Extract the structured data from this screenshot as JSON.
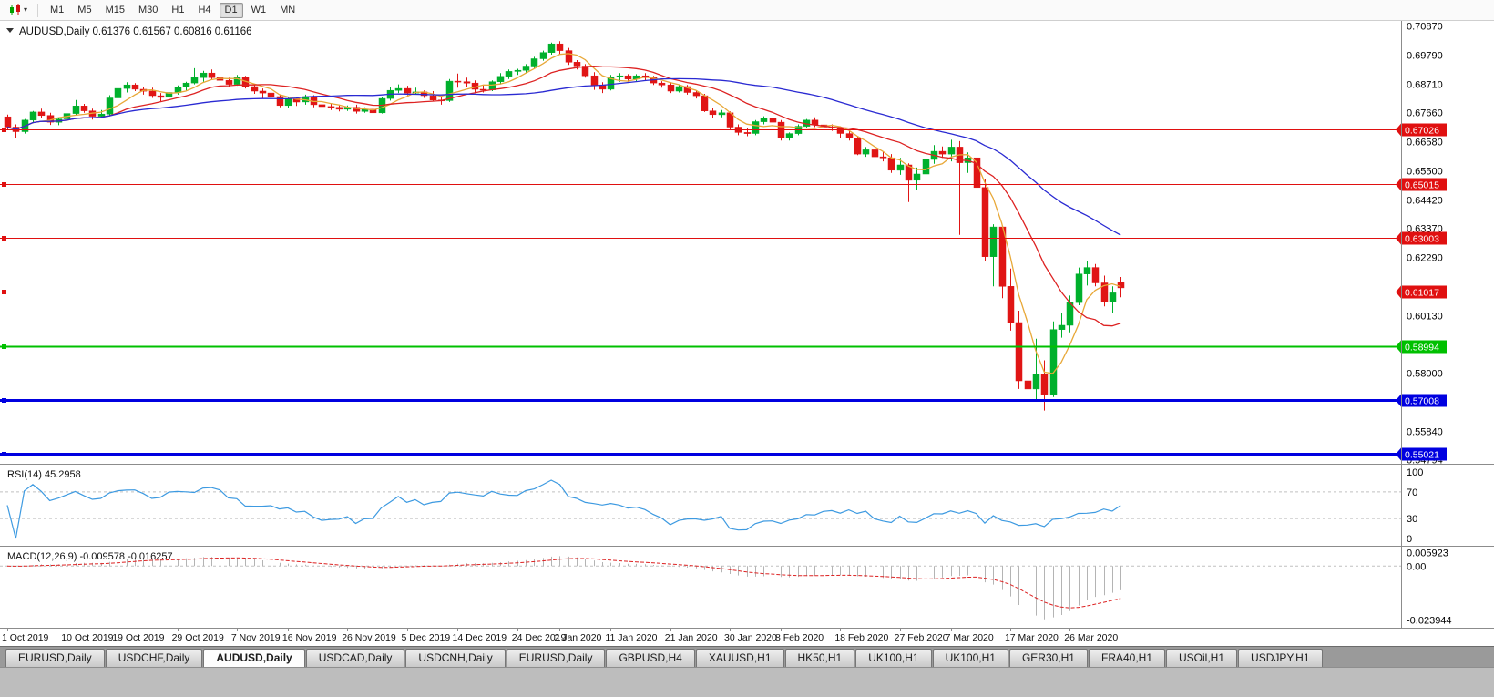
{
  "toolbar": {
    "chart_type_label": "Charts",
    "timeframes": [
      "M1",
      "M5",
      "M15",
      "M30",
      "H1",
      "H4",
      "D1",
      "W1",
      "MN"
    ],
    "active_timeframe": "D1"
  },
  "chart": {
    "symbol_label": "AUDUSD,Daily",
    "ohlc_text": "0.61376 0.61567 0.60816 0.61166"
  },
  "chart_data": {
    "type": "candlestick",
    "title": "AUDUSD,Daily",
    "quote": {
      "open": "0.61376",
      "high": "0.61567",
      "low": "0.60816",
      "close": "0.61166"
    },
    "price_axis": {
      "min": 0.5465,
      "max": 0.7105,
      "ticks": [
        "0.70870",
        "0.69790",
        "0.68710",
        "0.67660",
        "0.66580",
        "0.65500",
        "0.64420",
        "0.63370",
        "0.62290",
        "0.60130",
        "0.58000",
        "0.55840",
        "0.54794"
      ]
    },
    "x_labels": [
      {
        "label": "1 Oct 2019",
        "i": 0
      },
      {
        "label": "10 Oct 2019",
        "i": 7
      },
      {
        "label": "19 Oct 2019",
        "i": 13
      },
      {
        "label": "29 Oct 2019",
        "i": 20
      },
      {
        "label": "7 Nov 2019",
        "i": 27
      },
      {
        "label": "16 Nov 2019",
        "i": 33
      },
      {
        "label": "26 Nov 2019",
        "i": 40
      },
      {
        "label": "5 Dec 2019",
        "i": 47
      },
      {
        "label": "14 Dec 2019",
        "i": 53
      },
      {
        "label": "24 Dec 2019",
        "i": 60
      },
      {
        "label": "2 Jan 2020",
        "i": 65
      },
      {
        "label": "11 Jan 2020",
        "i": 71
      },
      {
        "label": "21 Jan 2020",
        "i": 78
      },
      {
        "label": "30 Jan 2020",
        "i": 85
      },
      {
        "label": "8 Feb 2020",
        "i": 91
      },
      {
        "label": "18 Feb 2020",
        "i": 98
      },
      {
        "label": "27 Feb 2020",
        "i": 105
      },
      {
        "label": "7 Mar 2020",
        "i": 111
      },
      {
        "label": "17 Mar 2020",
        "i": 118
      },
      {
        "label": "26 Mar 2020",
        "i": 125
      }
    ],
    "candles": [
      [
        0.675,
        0.6758,
        0.6702,
        0.6712
      ],
      [
        0.6712,
        0.6722,
        0.667,
        0.6695
      ],
      [
        0.6695,
        0.6742,
        0.6688,
        0.6738
      ],
      [
        0.6738,
        0.6772,
        0.673,
        0.6768
      ],
      [
        0.6768,
        0.678,
        0.6745,
        0.6755
      ],
      [
        0.6755,
        0.6765,
        0.672,
        0.673
      ],
      [
        0.673,
        0.6748,
        0.6719,
        0.6742
      ],
      [
        0.6742,
        0.677,
        0.6738,
        0.6762
      ],
      [
        0.6762,
        0.6812,
        0.6755,
        0.679
      ],
      [
        0.679,
        0.6798,
        0.6765,
        0.6772
      ],
      [
        0.6772,
        0.678,
        0.674,
        0.6752
      ],
      [
        0.6752,
        0.6775,
        0.6745,
        0.676
      ],
      [
        0.676,
        0.683,
        0.6755,
        0.682
      ],
      [
        0.682,
        0.686,
        0.681,
        0.6855
      ],
      [
        0.6855,
        0.6878,
        0.684,
        0.6868
      ],
      [
        0.6868,
        0.6875,
        0.6845,
        0.6852
      ],
      [
        0.6852,
        0.6862,
        0.6832,
        0.6845
      ],
      [
        0.6845,
        0.6858,
        0.682,
        0.6828
      ],
      [
        0.6828,
        0.6838,
        0.6808,
        0.6822
      ],
      [
        0.6822,
        0.6848,
        0.6815,
        0.684
      ],
      [
        0.684,
        0.6866,
        0.6832,
        0.686
      ],
      [
        0.686,
        0.688,
        0.6845,
        0.6875
      ],
      [
        0.6875,
        0.693,
        0.687,
        0.6895
      ],
      [
        0.6895,
        0.692,
        0.688,
        0.6912
      ],
      [
        0.6912,
        0.6925,
        0.6888,
        0.6895
      ],
      [
        0.6895,
        0.6905,
        0.687,
        0.6885
      ],
      [
        0.6885,
        0.6895,
        0.686,
        0.687
      ],
      [
        0.687,
        0.6905,
        0.6865,
        0.6898
      ],
      [
        0.6898,
        0.6902,
        0.6855,
        0.6862
      ],
      [
        0.6862,
        0.687,
        0.6835,
        0.6845
      ],
      [
        0.6845,
        0.6855,
        0.682,
        0.6838
      ],
      [
        0.6838,
        0.6848,
        0.6815,
        0.6825
      ],
      [
        0.6825,
        0.6832,
        0.6785,
        0.6792
      ],
      [
        0.6792,
        0.6825,
        0.6782,
        0.6818
      ],
      [
        0.6818,
        0.6825,
        0.679,
        0.6805
      ],
      [
        0.6805,
        0.6832,
        0.6795,
        0.6825
      ],
      [
        0.6825,
        0.683,
        0.6785,
        0.6795
      ],
      [
        0.6795,
        0.6805,
        0.6778,
        0.6788
      ],
      [
        0.6788,
        0.6798,
        0.6775,
        0.6785
      ],
      [
        0.6785,
        0.6795,
        0.677,
        0.6778
      ],
      [
        0.6778,
        0.6792,
        0.6772,
        0.6785
      ],
      [
        0.6785,
        0.6795,
        0.6762,
        0.677
      ],
      [
        0.677,
        0.6785,
        0.6765,
        0.6778
      ],
      [
        0.6778,
        0.679,
        0.676,
        0.6765
      ],
      [
        0.6765,
        0.6825,
        0.6762,
        0.6818
      ],
      [
        0.6818,
        0.6862,
        0.681,
        0.6848
      ],
      [
        0.6848,
        0.687,
        0.6838,
        0.6855
      ],
      [
        0.6855,
        0.6865,
        0.683,
        0.6838
      ],
      [
        0.6838,
        0.6858,
        0.6832,
        0.6842
      ],
      [
        0.6842,
        0.6848,
        0.682,
        0.6828
      ],
      [
        0.6828,
        0.6845,
        0.6808,
        0.6812
      ],
      [
        0.6812,
        0.6825,
        0.6795,
        0.681
      ],
      [
        0.681,
        0.689,
        0.6805,
        0.6882
      ],
      [
        0.6882,
        0.691,
        0.6858,
        0.688
      ],
      [
        0.688,
        0.6895,
        0.686,
        0.6875
      ],
      [
        0.6875,
        0.6885,
        0.6838,
        0.6852
      ],
      [
        0.6852,
        0.6868,
        0.684,
        0.685
      ],
      [
        0.685,
        0.6885,
        0.6845,
        0.688
      ],
      [
        0.688,
        0.6912,
        0.687,
        0.69
      ],
      [
        0.69,
        0.6925,
        0.689,
        0.6918
      ],
      [
        0.6918,
        0.6928,
        0.6905,
        0.6922
      ],
      [
        0.6922,
        0.6945,
        0.6912,
        0.6938
      ],
      [
        0.6938,
        0.6972,
        0.693,
        0.6965
      ],
      [
        0.6965,
        0.6995,
        0.6958,
        0.6988
      ],
      [
        0.6988,
        0.7025,
        0.698,
        0.702
      ],
      [
        0.702,
        0.703,
        0.6982,
        0.6995
      ],
      [
        0.6995,
        0.7005,
        0.6942,
        0.6952
      ],
      [
        0.6952,
        0.696,
        0.6925,
        0.6938
      ],
      [
        0.6938,
        0.6945,
        0.6895,
        0.6902
      ],
      [
        0.6902,
        0.6915,
        0.685,
        0.6868
      ],
      [
        0.6868,
        0.6878,
        0.6838,
        0.6852
      ],
      [
        0.6852,
        0.6905,
        0.6848,
        0.6898
      ],
      [
        0.6898,
        0.6912,
        0.688,
        0.6902
      ],
      [
        0.6902,
        0.6908,
        0.688,
        0.689
      ],
      [
        0.689,
        0.6908,
        0.6882,
        0.6902
      ],
      [
        0.6902,
        0.6912,
        0.6885,
        0.6895
      ],
      [
        0.6895,
        0.6902,
        0.6868,
        0.6875
      ],
      [
        0.6875,
        0.6882,
        0.6858,
        0.6868
      ],
      [
        0.6868,
        0.6878,
        0.6838,
        0.6845
      ],
      [
        0.6845,
        0.687,
        0.684,
        0.6862
      ],
      [
        0.6862,
        0.6868,
        0.6832,
        0.684
      ],
      [
        0.684,
        0.6848,
        0.6818,
        0.6828
      ],
      [
        0.6828,
        0.6835,
        0.6768,
        0.6772
      ],
      [
        0.6772,
        0.6782,
        0.6745,
        0.6758
      ],
      [
        0.6758,
        0.6775,
        0.6748,
        0.6765
      ],
      [
        0.6765,
        0.677,
        0.67,
        0.6712
      ],
      [
        0.6712,
        0.6722,
        0.6682,
        0.6692
      ],
      [
        0.6692,
        0.6708,
        0.6678,
        0.6688
      ],
      [
        0.6688,
        0.6738,
        0.6682,
        0.6732
      ],
      [
        0.6732,
        0.6752,
        0.6722,
        0.6745
      ],
      [
        0.6745,
        0.6755,
        0.6722,
        0.673
      ],
      [
        0.673,
        0.6738,
        0.6662,
        0.6672
      ],
      [
        0.6672,
        0.6692,
        0.6662,
        0.6688
      ],
      [
        0.6688,
        0.6722,
        0.6682,
        0.6715
      ],
      [
        0.6715,
        0.6742,
        0.6708,
        0.6738
      ],
      [
        0.6738,
        0.6748,
        0.6712,
        0.672
      ],
      [
        0.672,
        0.6728,
        0.6702,
        0.6712
      ],
      [
        0.6712,
        0.6722,
        0.6698,
        0.6708
      ],
      [
        0.6708,
        0.6715,
        0.6672,
        0.6688
      ],
      [
        0.6688,
        0.6698,
        0.6662,
        0.6672
      ],
      [
        0.6672,
        0.6678,
        0.6608,
        0.6612
      ],
      [
        0.6612,
        0.6638,
        0.6602,
        0.6628
      ],
      [
        0.6628,
        0.6632,
        0.6585,
        0.6602
      ],
      [
        0.6602,
        0.6622,
        0.6585,
        0.6598
      ],
      [
        0.6598,
        0.6612,
        0.6542,
        0.6552
      ],
      [
        0.6552,
        0.6598,
        0.6535,
        0.6572
      ],
      [
        0.6572,
        0.6578,
        0.6434,
        0.6515
      ],
      [
        0.6515,
        0.6562,
        0.6478,
        0.6538
      ],
      [
        0.6538,
        0.6648,
        0.6512,
        0.6592
      ],
      [
        0.6592,
        0.6645,
        0.6576,
        0.6622
      ],
      [
        0.6622,
        0.664,
        0.6598,
        0.6612
      ],
      [
        0.6612,
        0.6665,
        0.6585,
        0.6638
      ],
      [
        0.6638,
        0.666,
        0.6313,
        0.658
      ],
      [
        0.658,
        0.6618,
        0.6542,
        0.6598
      ],
      [
        0.6598,
        0.6605,
        0.6468,
        0.6488
      ],
      [
        0.6488,
        0.6518,
        0.6215,
        0.6232
      ],
      [
        0.6232,
        0.6352,
        0.6122,
        0.6342
      ],
      [
        0.6342,
        0.6345,
        0.6078,
        0.6122
      ],
      [
        0.6122,
        0.6188,
        0.5958,
        0.5988
      ],
      [
        0.5988,
        0.6032,
        0.5742,
        0.5772
      ],
      [
        0.5772,
        0.5938,
        0.551,
        0.5742
      ],
      [
        0.5742,
        0.5928,
        0.5702,
        0.5798
      ],
      [
        0.5798,
        0.5848,
        0.5662,
        0.5722
      ],
      [
        0.5722,
        0.5992,
        0.5712,
        0.5962
      ],
      [
        0.5962,
        0.6022,
        0.5932,
        0.5978
      ],
      [
        0.5978,
        0.6088,
        0.5952,
        0.6062
      ],
      [
        0.6062,
        0.6192,
        0.6052,
        0.6168
      ],
      [
        0.6168,
        0.6215,
        0.6125,
        0.6192
      ],
      [
        0.6192,
        0.6205,
        0.6122,
        0.6135
      ],
      [
        0.6135,
        0.6162,
        0.6048,
        0.6065
      ],
      [
        0.6065,
        0.6122,
        0.6022,
        0.6098
      ],
      [
        0.61376,
        0.61567,
        0.60816,
        0.61166
      ]
    ],
    "moving_averages": [
      {
        "name": "ma-fast",
        "period": 5,
        "color_key": "ma_fast"
      },
      {
        "name": "ma-mid",
        "period": 13,
        "color_key": "ma_mid"
      },
      {
        "name": "ma-slow",
        "period": 34,
        "color_key": "ma_slow"
      }
    ],
    "hlines": [
      {
        "price": 0.67026,
        "label": "0.67026",
        "color_key": "hline_red",
        "width": 1
      },
      {
        "price": 0.65015,
        "label": "0.65015",
        "color_key": "hline_red",
        "width": 1
      },
      {
        "price": 0.63003,
        "label": "0.63003",
        "color_key": "hline_red",
        "width": 1
      },
      {
        "price": 0.61017,
        "label": "0.61017",
        "color_key": "hline_red",
        "width": 1
      },
      {
        "price": 0.58994,
        "label": "0.58994",
        "color_key": "hline_green",
        "width": 2
      },
      {
        "price": 0.57008,
        "label": "0.57008",
        "color_key": "hline_blue",
        "width": 3
      },
      {
        "price": 0.55021,
        "label": "0.55021",
        "color_key": "hline_blue",
        "width": 3
      }
    ],
    "rsi": {
      "label": "RSI(14)",
      "value": "45.2958",
      "period": 14,
      "axis_labels": [
        "100",
        "70",
        "30",
        "0"
      ],
      "axis_values": [
        100,
        70,
        30,
        0
      ],
      "guides": [
        70,
        30
      ]
    },
    "macd": {
      "label": "MACD(12,26,9)",
      "values_text": "-0.009578 -0.016257",
      "fast": 12,
      "slow": 26,
      "signal": 9,
      "axis_labels": [
        "0.005923",
        "0.00",
        "-0.023944"
      ],
      "axis_values": [
        0.005923,
        0,
        -0.023944
      ]
    }
  },
  "tabs": {
    "active_index": 2,
    "items": [
      "EURUSD,Daily",
      "USDCHF,Daily",
      "AUDUSD,Daily",
      "USDCAD,Daily",
      "USDCNH,Daily",
      "EURUSD,Daily",
      "GBPUSD,H4",
      "XAUUSD,H1",
      "HK50,H1",
      "UK100,H1",
      "UK100,H1",
      "GER30,H1",
      "FRA40,H1",
      "USOil,H1",
      "USDJPY,H1"
    ]
  },
  "colors": {
    "up": "#00b02c",
    "down": "#e01515",
    "ma_fast": "#e8a838",
    "ma_mid": "#dd2222",
    "ma_slow": "#2a2ad2",
    "rsi": "#3d9ae1",
    "macd_hist": "#b4b4b4",
    "macd_signal": "#dd2222",
    "hline_red": "#e01010",
    "hline_green": "#00c000",
    "hline_blue": "#0000e0",
    "guide_dash": "#c0c0c0",
    "axis_text": "#000000",
    "separator": "#8c8c8c"
  }
}
